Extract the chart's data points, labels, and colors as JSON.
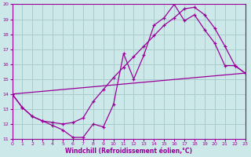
{
  "xlabel": "Windchill (Refroidissement éolien,°C)",
  "bg_color": "#cce8e8",
  "line_color": "#990099",
  "grid_color": "#aacccc",
  "xlim": [
    0,
    23
  ],
  "ylim": [
    11,
    20
  ],
  "xticks": [
    0,
    1,
    2,
    3,
    4,
    5,
    6,
    7,
    8,
    9,
    10,
    11,
    12,
    13,
    14,
    15,
    16,
    17,
    18,
    19,
    20,
    21,
    22,
    23
  ],
  "yticks": [
    11,
    12,
    13,
    14,
    15,
    16,
    17,
    18,
    19,
    20
  ],
  "line1_x": [
    0,
    1,
    2,
    3,
    4,
    5,
    6,
    7,
    8,
    9,
    10,
    11,
    12,
    13,
    14,
    15,
    16,
    17,
    18,
    19,
    20,
    21,
    22,
    23
  ],
  "line1_y": [
    14.0,
    13.1,
    12.5,
    12.2,
    11.9,
    11.6,
    11.1,
    11.1,
    12.0,
    11.8,
    13.3,
    16.7,
    15.0,
    16.6,
    18.6,
    19.1,
    20.0,
    18.9,
    19.3,
    18.3,
    17.4,
    15.9,
    15.9,
    15.4
  ],
  "line2_x": [
    0,
    1,
    2,
    3,
    4,
    5,
    6,
    7,
    8,
    9,
    10,
    11,
    12,
    13,
    14,
    15,
    16,
    17,
    18,
    19,
    20,
    21,
    22,
    23
  ],
  "line2_y": [
    14.0,
    13.1,
    12.5,
    12.2,
    12.1,
    12.0,
    12.1,
    12.4,
    13.5,
    14.3,
    15.1,
    15.8,
    16.5,
    17.2,
    17.9,
    18.6,
    19.1,
    19.7,
    19.8,
    19.3,
    18.4,
    17.2,
    15.9,
    15.4
  ],
  "line3_x": [
    0,
    23
  ],
  "line3_y": [
    14.0,
    15.4
  ]
}
